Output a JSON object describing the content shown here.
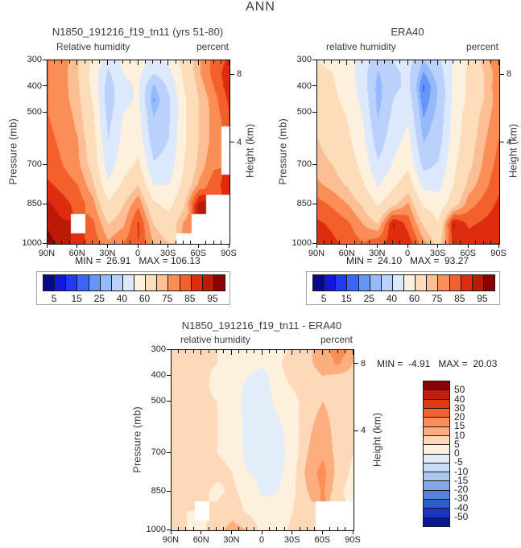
{
  "page_title": "ANN",
  "palettes": {
    "rh": [
      "#08088A",
      "#1416D9",
      "#2438F8",
      "#3D64FB",
      "#6495F8",
      "#96B9FB",
      "#BAD1FB",
      "#DCE8FB",
      "#FDF0DC",
      "#FDDCBA",
      "#FCBE94",
      "#FB8D57",
      "#F4602B",
      "#E02C0E",
      "#BB1A07",
      "#8B0000"
    ],
    "diff": [
      "#0A1692",
      "#1A35C0",
      "#2F5BD1",
      "#5583DB",
      "#82A9E6",
      "#A9C7EF",
      "#C9DCF5",
      "#E3EDFA",
      "#FDF1DE",
      "#FDD9B9",
      "#FCAE7E",
      "#FB8D57",
      "#F4602B",
      "#E23A12",
      "#C21E0C",
      "#8B0000"
    ]
  },
  "chart_data": [
    {
      "type": "contour",
      "title": "N1850_191216_f19_tn11 (yrs 51-80)",
      "subtitle_left": "Relative humidity",
      "subtitle_right": "percent",
      "ylabel": "Pressure (mb)",
      "ylabel_right": "Height (km)",
      "minmax": "MIN =  26.91   MAX = 106.13",
      "palette": "rh",
      "levels": [
        5,
        10,
        15,
        20,
        25,
        30,
        40,
        50,
        60,
        70,
        75,
        80,
        85,
        90,
        95
      ],
      "colorbar_labels": [
        "5",
        "15",
        "25",
        "40",
        "60",
        "75",
        "85",
        "95"
      ],
      "x_ticks": [
        {
          "label": "90N",
          "lat": 90
        },
        {
          "label": "60N",
          "lat": 60
        },
        {
          "label": "30N",
          "lat": 30
        },
        {
          "label": "0",
          "lat": 0
        },
        {
          "label": "30S",
          "lat": -30
        },
        {
          "label": "60S",
          "lat": -60
        },
        {
          "label": "90S",
          "lat": -90
        }
      ],
      "y_ticks": [
        300,
        400,
        500,
        700,
        850,
        1000
      ],
      "height_ticks": [
        {
          "label": "8",
          "p": 356
        },
        {
          "label": "4",
          "p": 616
        }
      ],
      "grid": {
        "lats": [
          90,
          75,
          60,
          45,
          30,
          15,
          0,
          -15,
          -30,
          -45,
          -60,
          -75,
          -90
        ],
        "pressures": [
          300,
          350,
          400,
          450,
          500,
          600,
          700,
          775,
          850,
          925,
          1000
        ],
        "values": [
          [
            80,
            78,
            70,
            58,
            44,
            52,
            56,
            46,
            52,
            64,
            74,
            82,
            86
          ],
          [
            80,
            77,
            70,
            56,
            38,
            50,
            53,
            40,
            47,
            62,
            74,
            82,
            88
          ],
          [
            80,
            77,
            71,
            57,
            35,
            48,
            51,
            28,
            42,
            60,
            72,
            80,
            88
          ],
          [
            80,
            77,
            72,
            59,
            34,
            48,
            51,
            24,
            38,
            58,
            70,
            78,
            86
          ],
          [
            80,
            78,
            73,
            61,
            36,
            50,
            53,
            29,
            38,
            58,
            70,
            77,
            85
          ],
          [
            81,
            79,
            75,
            64,
            40,
            53,
            56,
            34,
            40,
            58,
            70,
            77,
            null
          ],
          [
            82,
            80,
            76,
            67,
            45,
            56,
            62,
            41,
            44,
            60,
            72,
            79,
            null
          ],
          [
            86,
            83,
            80,
            71,
            52,
            62,
            70,
            50,
            50,
            63,
            76,
            83,
            88
          ],
          [
            91,
            87,
            83,
            77,
            62,
            70,
            79,
            62,
            57,
            68,
            92,
            null,
            null
          ],
          [
            94,
            91,
            null,
            81,
            70,
            74,
            86,
            70,
            64,
            76,
            null,
            null,
            null
          ],
          [
            97,
            93,
            87,
            83,
            76,
            80,
            85,
            75,
            70,
            null,
            null,
            null,
            null
          ]
        ]
      }
    },
    {
      "type": "contour",
      "title": "ERA40",
      "subtitle_left": "relative humidity",
      "subtitle_right": "percent",
      "ylabel": "Pressure (mb)",
      "ylabel_right": "Height (km)",
      "minmax": "MIN =  24.10   MAX =  93.27",
      "palette": "rh",
      "levels": [
        5,
        10,
        15,
        20,
        25,
        30,
        40,
        50,
        60,
        70,
        75,
        80,
        85,
        90,
        95
      ],
      "colorbar_labels": [
        "5",
        "15",
        "25",
        "40",
        "60",
        "75",
        "85",
        "95"
      ],
      "x_ticks": [
        {
          "label": "90N",
          "lat": 90
        },
        {
          "label": "60N",
          "lat": 60
        },
        {
          "label": "30N",
          "lat": 30
        },
        {
          "label": "0",
          "lat": 0
        },
        {
          "label": "30S",
          "lat": -30
        },
        {
          "label": "60S",
          "lat": -60
        },
        {
          "label": "90S",
          "lat": -90
        }
      ],
      "y_ticks": [
        300,
        400,
        500,
        700,
        850,
        1000
      ],
      "height_ticks": [
        {
          "label": "8",
          "p": 356
        },
        {
          "label": "4",
          "p": 616
        }
      ],
      "grid": {
        "lats": [
          90,
          75,
          60,
          45,
          30,
          15,
          0,
          -15,
          -30,
          -45,
          -60,
          -75,
          -90
        ],
        "pressures": [
          300,
          350,
          400,
          450,
          500,
          600,
          700,
          775,
          850,
          925,
          1000
        ],
        "values": [
          [
            60,
            58,
            54,
            46,
            34,
            40,
            44,
            30,
            38,
            52,
            60,
            72,
            80
          ],
          [
            62,
            60,
            55,
            44,
            29,
            38,
            42,
            24,
            34,
            52,
            62,
            70,
            78
          ],
          [
            64,
            61,
            56,
            45,
            27,
            38,
            42,
            19,
            31,
            52,
            62,
            70,
            79
          ],
          [
            66,
            62,
            57,
            47,
            27,
            40,
            45,
            21,
            31,
            52,
            62,
            70,
            78
          ],
          [
            67,
            64,
            59,
            49,
            29,
            42,
            48,
            24,
            32,
            54,
            64,
            72,
            78
          ],
          [
            70,
            67,
            62,
            53,
            34,
            46,
            53,
            29,
            35,
            55,
            66,
            74,
            80
          ],
          [
            72,
            70,
            65,
            57,
            41,
            51,
            58,
            37,
            41,
            58,
            68,
            76,
            82
          ],
          [
            76,
            73,
            69,
            61,
            49,
            58,
            66,
            47,
            47,
            60,
            72,
            78,
            84
          ],
          [
            82,
            79,
            75,
            69,
            59,
            68,
            76,
            59,
            54,
            66,
            78,
            82,
            86
          ],
          [
            86,
            84,
            81,
            75,
            70,
            91,
            83,
            69,
            61,
            91,
            84,
            86,
            88
          ],
          [
            88,
            86,
            84,
            80,
            84,
            87,
            88,
            77,
            67,
            86,
            88,
            90,
            90
          ]
        ]
      }
    },
    {
      "type": "contour",
      "title": "N1850_191216_f19_tn11 - ERA40",
      "subtitle_left": "relative humidity",
      "subtitle_right": "percent",
      "ylabel": "Pressure (mb)",
      "ylabel_right": "Height (km)",
      "minmax": "MIN =  -4.91   MAX =  20.03",
      "palette": "diff",
      "levels": [
        -50,
        -40,
        -30,
        -20,
        -15,
        -10,
        -5,
        0,
        5,
        10,
        15,
        20,
        30,
        40,
        50
      ],
      "colorbar_labels_vertical": [
        "50",
        "40",
        "30",
        "20",
        "15",
        "10",
        "5",
        "0",
        "-5",
        "-10",
        "-15",
        "-20",
        "-30",
        "-40",
        "-50"
      ],
      "x_ticks": [
        {
          "label": "90N",
          "lat": 90
        },
        {
          "label": "60N",
          "lat": 60
        },
        {
          "label": "30N",
          "lat": 30
        },
        {
          "label": "0",
          "lat": 0
        },
        {
          "label": "30S",
          "lat": -30
        },
        {
          "label": "60S",
          "lat": -60
        },
        {
          "label": "90S",
          "lat": -90
        }
      ],
      "y_ticks": [
        300,
        400,
        500,
        700,
        850,
        1000
      ],
      "height_ticks": [
        {
          "label": "8",
          "p": 356
        },
        {
          "label": "4",
          "p": 616
        }
      ],
      "grid": {
        "lats": [
          90,
          75,
          60,
          45,
          30,
          15,
          0,
          -15,
          -30,
          -45,
          -60,
          -75,
          -90
        ],
        "pressures": [
          300,
          350,
          400,
          450,
          500,
          600,
          700,
          775,
          850,
          925,
          1000
        ],
        "values": [
          [
            8,
            7,
            6,
            5,
            4,
            3,
            2,
            3,
            6,
            9,
            12,
            18,
            13
          ],
          [
            8,
            7,
            6,
            5,
            3,
            2,
            1,
            4,
            8,
            9,
            12,
            16,
            10
          ],
          [
            8,
            7,
            6,
            4,
            2,
            0,
            -2,
            3,
            7,
            8,
            10,
            9,
            8
          ],
          [
            8,
            7,
            6,
            4,
            2,
            -1,
            -2,
            2,
            5,
            8,
            9,
            8,
            8
          ],
          [
            8,
            7,
            6,
            5,
            3,
            -2,
            -2,
            1,
            3,
            8,
            10,
            8,
            7
          ],
          [
            8,
            7,
            6,
            5,
            4,
            -2,
            -1,
            -1,
            2,
            9,
            12,
            8,
            6
          ],
          [
            8,
            7,
            7,
            5,
            4,
            -2,
            -1,
            -2,
            2,
            10,
            14,
            8,
            5
          ],
          [
            8,
            7,
            7,
            6,
            5,
            0,
            -1,
            -2,
            3,
            12,
            17,
            8,
            4
          ],
          [
            7,
            6,
            6,
            4,
            6,
            3,
            -1,
            0,
            4,
            10,
            16,
            6,
            3
          ],
          [
            6,
            5,
            null,
            6,
            8,
            4,
            2,
            2,
            5,
            8,
            null,
            null,
            null
          ],
          [
            6,
            5,
            4,
            8,
            12,
            10,
            3,
            3,
            6,
            8,
            null,
            null,
            null
          ]
        ]
      }
    }
  ]
}
